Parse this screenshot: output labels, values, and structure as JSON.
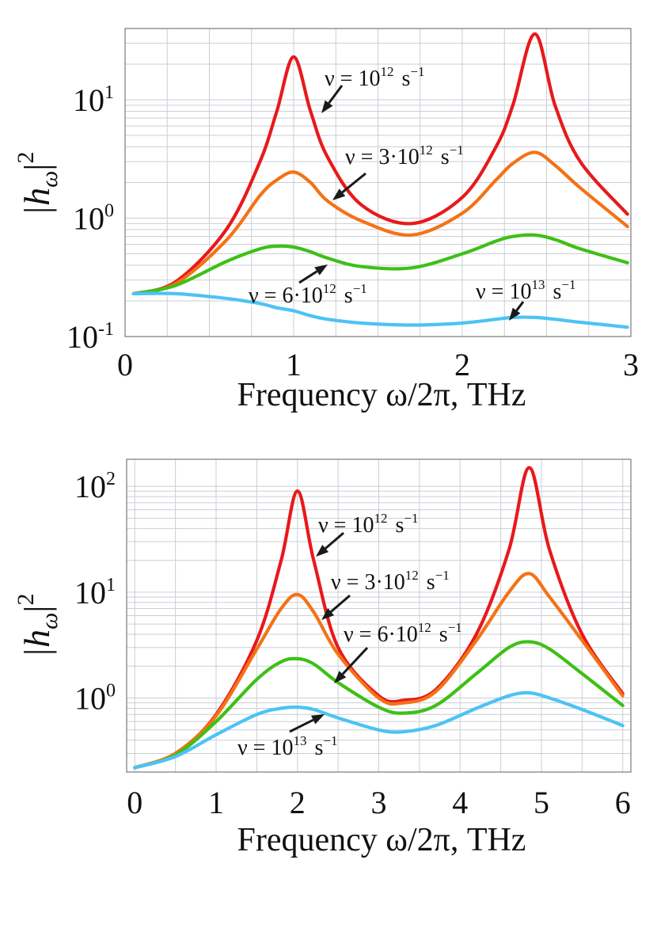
{
  "chart_data": [
    {
      "type": "line",
      "yscale": "log",
      "xlabel": "Frequency ω/2π, THz",
      "ylabel_base": "|h",
      "ylabel_sub": "ω",
      "ylabel_close": "|",
      "ylabel_sup": "2",
      "xlim": [
        0,
        3
      ],
      "ylim": [
        0.1,
        40
      ],
      "xticks": [
        "0",
        "1",
        "2",
        "3"
      ],
      "yticks": [
        {
          "base": "10",
          "exp": "-1",
          "value": 0.1
        },
        {
          "base": "10",
          "exp": "0",
          "value": 1
        },
        {
          "base": "10",
          "exp": "1",
          "value": 10
        }
      ],
      "x": [
        0.05,
        0.3,
        0.6,
        0.8,
        0.9,
        1.0,
        1.1,
        1.2,
        1.4,
        1.7,
        2.0,
        2.2,
        2.3,
        2.43,
        2.55,
        2.7,
        2.98
      ],
      "series": [
        {
          "name": "ν = 10¹² s⁻¹",
          "color": "#e8191b",
          "values": [
            0.23,
            0.29,
            0.8,
            3.0,
            8.0,
            23.0,
            8.0,
            3.3,
            1.3,
            0.9,
            1.5,
            4.0,
            9.0,
            36.0,
            9.0,
            3.0,
            1.08
          ]
        },
        {
          "name": "ν = 3·10¹² s⁻¹",
          "color": "#f47216",
          "values": [
            0.23,
            0.28,
            0.65,
            1.55,
            2.1,
            2.45,
            2.0,
            1.4,
            0.95,
            0.72,
            1.1,
            2.1,
            2.9,
            3.6,
            2.8,
            1.8,
            0.85
          ]
        },
        {
          "name": "ν = 6·10¹² s⁻¹",
          "color": "#3ec016",
          "values": [
            0.23,
            0.27,
            0.43,
            0.55,
            0.58,
            0.57,
            0.52,
            0.46,
            0.39,
            0.38,
            0.5,
            0.64,
            0.7,
            0.72,
            0.66,
            0.55,
            0.42
          ]
        },
        {
          "name": "ν = 10¹³ s⁻¹",
          "color": "#4cc3f5",
          "values": [
            0.23,
            0.23,
            0.21,
            0.19,
            0.175,
            0.165,
            0.15,
            0.14,
            0.13,
            0.125,
            0.13,
            0.14,
            0.145,
            0.145,
            0.14,
            0.132,
            0.12
          ]
        }
      ],
      "annotations": [
        {
          "base": "ν = 10",
          "sup": "12",
          "unit": "s",
          "unit_sup": "−1"
        },
        {
          "base": "ν = 3·10",
          "sup": "12",
          "unit": "s",
          "unit_sup": "−1"
        },
        {
          "base": "ν = 6·10",
          "sup": "12",
          "unit": "s",
          "unit_sup": "−1"
        },
        {
          "base": "ν = 10",
          "sup": "13",
          "unit": "s",
          "unit_sup": "−1"
        }
      ]
    },
    {
      "type": "line",
      "yscale": "log",
      "xlabel": "Frequency ω/2π, THz",
      "ylabel_base": "|h",
      "ylabel_sub": "ω",
      "ylabel_close": "|",
      "ylabel_sup": "2",
      "xlim": [
        -0.1,
        6.1
      ],
      "ylim": [
        0.2,
        180
      ],
      "xticks": [
        "0",
        "1",
        "2",
        "3",
        "4",
        "5",
        "6"
      ],
      "yticks": [
        {
          "base": "10",
          "exp": "0",
          "value": 1
        },
        {
          "base": "10",
          "exp": "1",
          "value": 10
        },
        {
          "base": "10",
          "exp": "2",
          "value": 100
        }
      ],
      "x": [
        0.0,
        0.5,
        1.0,
        1.5,
        1.8,
        2.0,
        2.2,
        2.5,
        3.0,
        3.3,
        3.7,
        4.2,
        4.6,
        4.85,
        5.1,
        5.5,
        6.0
      ],
      "series": [
        {
          "name": "ν = 10¹² s⁻¹",
          "color": "#e8191b",
          "values": [
            0.22,
            0.3,
            0.7,
            3.5,
            20.0,
            90.0,
            20.0,
            3.0,
            1.05,
            0.95,
            1.2,
            4.0,
            25.0,
            150.0,
            25.0,
            4.0,
            1.1
          ]
        },
        {
          "name": "ν = 3·10¹² s⁻¹",
          "color": "#f47216",
          "values": [
            0.22,
            0.3,
            0.68,
            2.9,
            7.0,
            9.5,
            6.5,
            2.6,
            1.0,
            0.9,
            1.15,
            3.5,
            10.0,
            15.0,
            9.0,
            3.5,
            1.05
          ]
        },
        {
          "name": "ν = 6·10¹² s⁻¹",
          "color": "#3ec016",
          "values": [
            0.22,
            0.29,
            0.6,
            1.5,
            2.2,
            2.35,
            2.1,
            1.4,
            0.82,
            0.72,
            0.85,
            1.7,
            3.0,
            3.4,
            2.9,
            1.7,
            0.85
          ]
        },
        {
          "name": "ν = 10¹³ s⁻¹",
          "color": "#4cc3f5",
          "values": [
            0.22,
            0.28,
            0.45,
            0.7,
            0.8,
            0.82,
            0.78,
            0.65,
            0.5,
            0.48,
            0.55,
            0.8,
            1.05,
            1.12,
            1.0,
            0.78,
            0.55
          ]
        }
      ],
      "annotations": [
        {
          "base": "ν = 10",
          "sup": "12",
          "unit": "s",
          "unit_sup": "−1"
        },
        {
          "base": "ν = 3·10",
          "sup": "12",
          "unit": "s",
          "unit_sup": "−1"
        },
        {
          "base": "ν = 6·10",
          "sup": "12",
          "unit": "s",
          "unit_sup": "−1"
        },
        {
          "base": "ν = 10",
          "sup": "13",
          "unit": "s",
          "unit_sup": "−1"
        }
      ]
    }
  ]
}
